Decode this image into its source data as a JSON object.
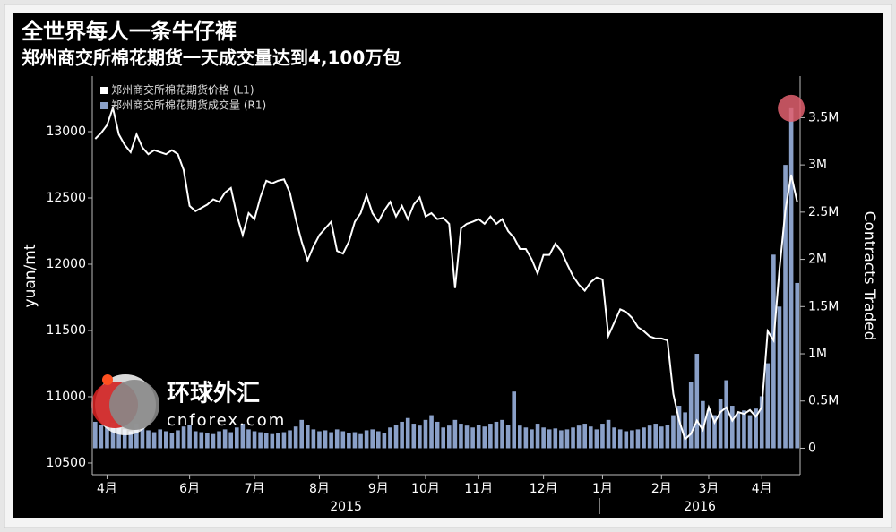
{
  "chart_data": {
    "type": "line-bar-dual",
    "title": "全世界每人一条牛仔裤",
    "subtitle": "郑州商交所棉花期货一天成交量达到4,100万包",
    "ylabel": "yuan/mt",
    "y2label": "Contracts Traded",
    "legend": "upper left",
    "year_labels": [
      "2015",
      "2016"
    ],
    "watermark": {
      "name": "环球外汇",
      "url": "cnforex.com"
    },
    "categories": [
      null,
      null,
      "4月",
      null,
      null,
      null,
      null,
      null,
      null,
      null,
      null,
      null,
      null,
      null,
      null,
      null,
      "6月",
      null,
      null,
      null,
      null,
      null,
      null,
      null,
      null,
      null,
      null,
      "7月",
      null,
      null,
      null,
      null,
      null,
      null,
      null,
      null,
      null,
      null,
      "8月",
      null,
      null,
      null,
      null,
      null,
      null,
      null,
      null,
      null,
      "9月",
      null,
      null,
      null,
      null,
      null,
      null,
      null,
      "10月",
      null,
      null,
      null,
      null,
      null,
      null,
      null,
      null,
      "11月",
      null,
      null,
      null,
      null,
      null,
      null,
      null,
      null,
      null,
      null,
      "12月",
      null,
      null,
      null,
      null,
      null,
      null,
      null,
      null,
      null,
      "1月",
      null,
      null,
      null,
      null,
      null,
      null,
      null,
      null,
      null,
      "2月",
      null,
      null,
      null,
      null,
      null,
      null,
      null,
      "3月",
      null,
      null,
      null,
      null,
      null,
      null,
      null,
      null,
      "4月",
      null,
      null,
      null,
      null,
      null,
      null
    ],
    "series": [
      {
        "name": "郑州商交所棉花期货价格 (L1)",
        "color": "#ffffff",
        "kind": "line",
        "axis": "y",
        "values": [
          12946,
          12990,
          13050,
          13180,
          12980,
          12900,
          12845,
          12980,
          12880,
          12830,
          12860,
          12845,
          12830,
          12860,
          12830,
          12710,
          12440,
          12400,
          12425,
          12450,
          12490,
          12470,
          12540,
          12575,
          12370,
          12220,
          12385,
          12340,
          12505,
          12630,
          12610,
          12630,
          12640,
          12540,
          12340,
          12170,
          12030,
          12135,
          12220,
          12270,
          12320,
          12100,
          12080,
          12170,
          12320,
          12385,
          12520,
          12385,
          12320,
          12405,
          12470,
          12360,
          12440,
          12340,
          12450,
          12505,
          12360,
          12385,
          12340,
          12350,
          12305,
          11820,
          12270,
          12305,
          12320,
          12340,
          12305,
          12360,
          12305,
          12340,
          12250,
          12200,
          12115,
          12115,
          12035,
          11930,
          12070,
          12070,
          12155,
          12100,
          12000,
          11910,
          11845,
          11800,
          11865,
          11900,
          11885,
          11460,
          11560,
          11660,
          11640,
          11595,
          11525,
          11495,
          11455,
          11440,
          11440,
          11425,
          11020,
          10820,
          10680,
          10720,
          10820,
          10750,
          10920,
          10805,
          10885,
          10920,
          10820,
          10885,
          10870,
          10900,
          10850,
          10920,
          11495,
          11425,
          11965,
          12405,
          12675,
          12470
        ]
      },
      {
        "name": "郑州商交所棉花期货成交量 (R1)",
        "color": "#8aa0c8",
        "kind": "bar",
        "axis": "y2",
        "values": [
          280000,
          250000,
          300000,
          270000,
          220000,
          200000,
          180000,
          260000,
          210000,
          190000,
          170000,
          200000,
          180000,
          160000,
          190000,
          230000,
          250000,
          180000,
          170000,
          160000,
          150000,
          180000,
          200000,
          170000,
          220000,
          260000,
          200000,
          180000,
          170000,
          160000,
          150000,
          160000,
          170000,
          190000,
          230000,
          300000,
          250000,
          200000,
          180000,
          190000,
          170000,
          200000,
          180000,
          160000,
          170000,
          150000,
          190000,
          200000,
          180000,
          160000,
          220000,
          250000,
          280000,
          320000,
          260000,
          240000,
          300000,
          350000,
          280000,
          220000,
          240000,
          300000,
          260000,
          240000,
          220000,
          250000,
          230000,
          260000,
          280000,
          300000,
          250000,
          600000,
          240000,
          220000,
          200000,
          260000,
          220000,
          200000,
          210000,
          190000,
          200000,
          220000,
          240000,
          260000,
          230000,
          200000,
          260000,
          300000,
          220000,
          200000,
          180000,
          190000,
          200000,
          220000,
          240000,
          260000,
          230000,
          250000,
          350000,
          450000,
          380000,
          700000,
          1000000,
          500000,
          400000,
          350000,
          520000,
          720000,
          450000,
          380000,
          400000,
          350000,
          420000,
          550000,
          900000,
          2050000,
          1500000,
          3000000,
          3600000,
          1750000
        ]
      }
    ],
    "ylim": [
      10412,
      13419
    ],
    "yticks": [
      10500,
      11000,
      11500,
      12000,
      12500,
      13000
    ],
    "y2lim": [
      -280000,
      3940000
    ],
    "y2ticks": [
      {
        "value": 0,
        "label": "0"
      },
      {
        "value": 500000,
        "label": "0.5M"
      },
      {
        "value": 1000000,
        "label": "1M"
      },
      {
        "value": 1500000,
        "label": "1.5M"
      },
      {
        "value": 2000000,
        "label": "2M"
      },
      {
        "value": 2500000,
        "label": "2.5M"
      },
      {
        "value": 3000000,
        "label": "3M"
      },
      {
        "value": 3500000,
        "label": "3.5M"
      }
    ],
    "highlight_color": "#e0606e"
  }
}
